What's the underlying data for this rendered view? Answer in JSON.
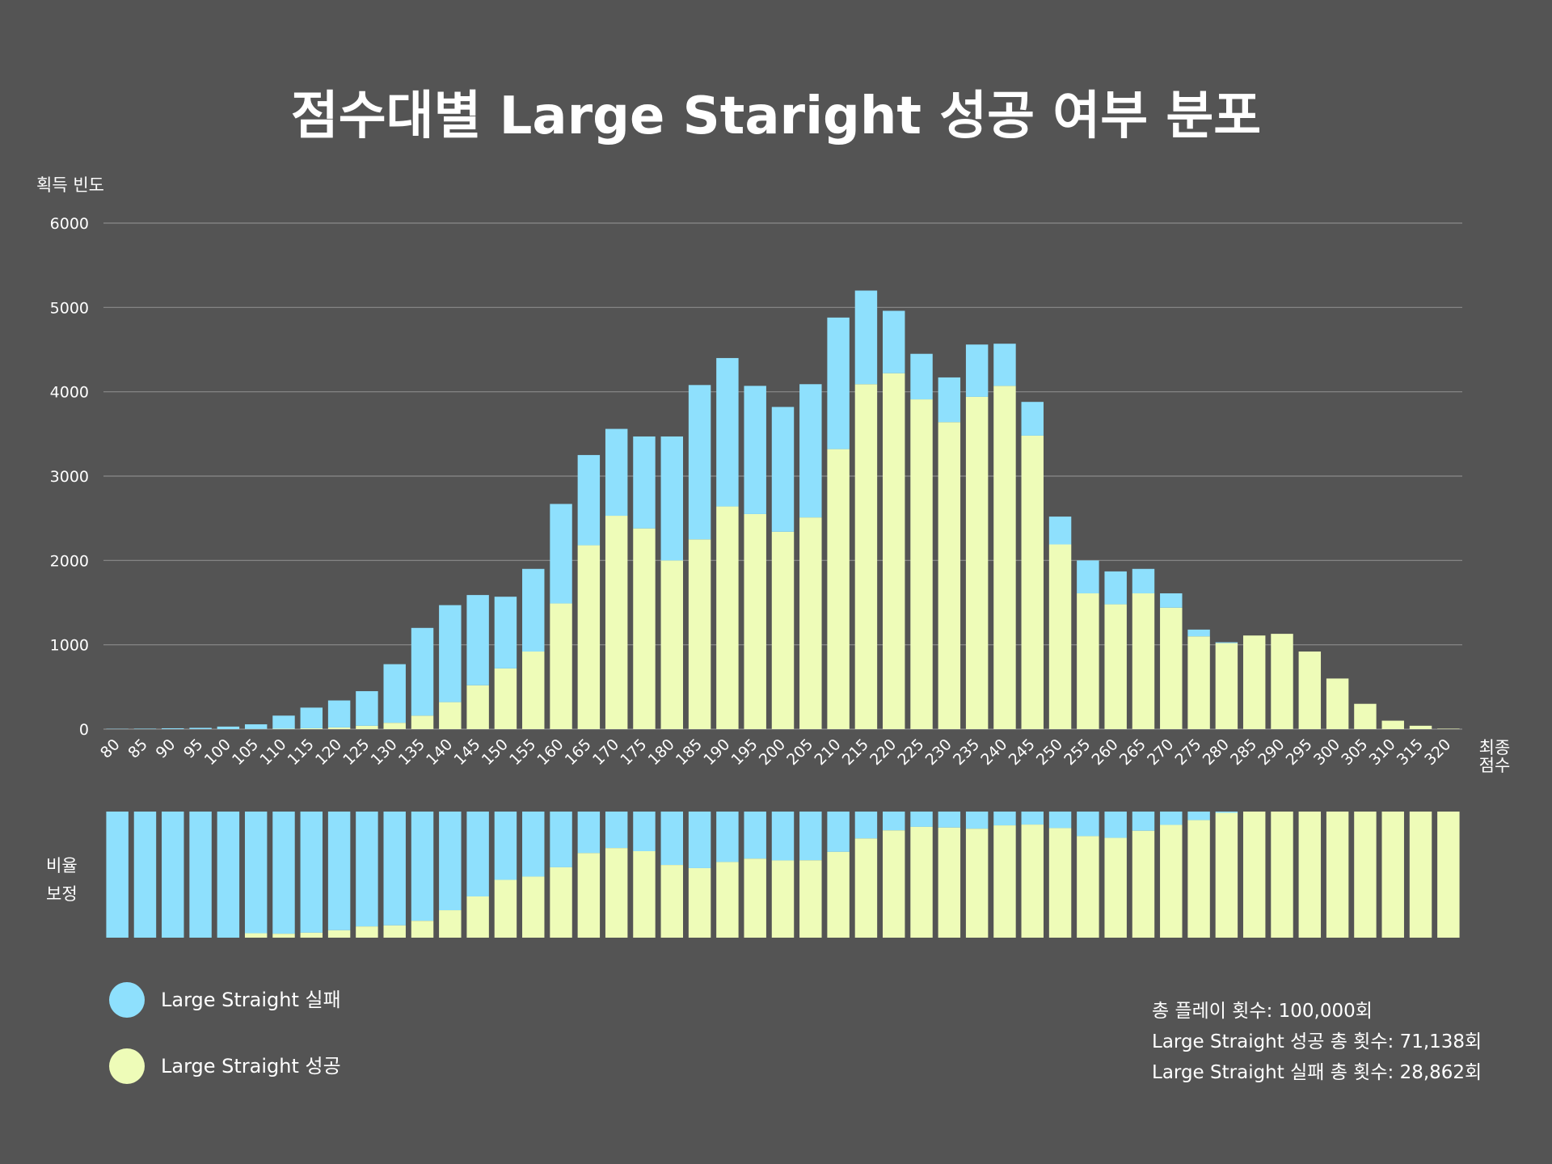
{
  "chart_data": {
    "type": "bar",
    "stacked": true,
    "title": "점수대별 Large Starigh­t 성공 여부 분포",
    "ylabel": "획득 빈도",
    "xlabel": "최종 점수",
    "ratio_label": "비율 보정",
    "ylim": [
      0,
      6000
    ],
    "yticks": [
      0,
      1000,
      2000,
      3000,
      4000,
      5000,
      6000
    ],
    "categories": [
      80,
      85,
      90,
      95,
      100,
      105,
      110,
      115,
      120,
      125,
      130,
      135,
      140,
      145,
      150,
      155,
      160,
      165,
      170,
      175,
      180,
      185,
      190,
      195,
      200,
      205,
      210,
      215,
      220,
      225,
      230,
      235,
      240,
      245,
      250,
      255,
      260,
      265,
      270,
      275,
      280,
      285,
      290,
      295,
      300,
      305,
      310,
      315,
      320
    ],
    "series": [
      {
        "name": "Large Straight 성공",
        "color": "#eefcb8",
        "values": [
          0,
          0,
          0,
          0,
          0,
          2,
          5,
          10,
          20,
          40,
          75,
          160,
          320,
          520,
          720,
          920,
          1490,
          2180,
          2530,
          2380,
          2000,
          2250,
          2640,
          2550,
          2340,
          2510,
          3320,
          4090,
          4220,
          3910,
          3640,
          3940,
          4070,
          3480,
          2190,
          1610,
          1480,
          1610,
          1440,
          1100,
          1020,
          1110,
          1130,
          920,
          600,
          300,
          100,
          40,
          5
        ]
      },
      {
        "name": "Large Straight 실패",
        "color": "#8ee0fd",
        "values": [
          3,
          5,
          10,
          15,
          30,
          55,
          155,
          245,
          320,
          410,
          695,
          1040,
          1150,
          1070,
          850,
          980,
          1180,
          1070,
          1030,
          1090,
          1470,
          1830,
          1760,
          1520,
          1480,
          1580,
          1560,
          1110,
          740,
          540,
          530,
          620,
          500,
          400,
          330,
          390,
          390,
          290,
          170,
          80,
          10,
          0,
          0,
          0,
          0,
          0,
          0,
          0,
          0
        ]
      }
    ],
    "legend": [
      "Large Straight 실패",
      "Large Straight 성공"
    ],
    "legend_placement": "bottom-left",
    "summary": [
      "총 플레이 횟수: 100,000회",
      "Large Straight 성공 총 횟수: 71,138회",
      "Large Straight 실패 총 횟수: 28,862회"
    ],
    "background": "#545454",
    "grid": true
  }
}
